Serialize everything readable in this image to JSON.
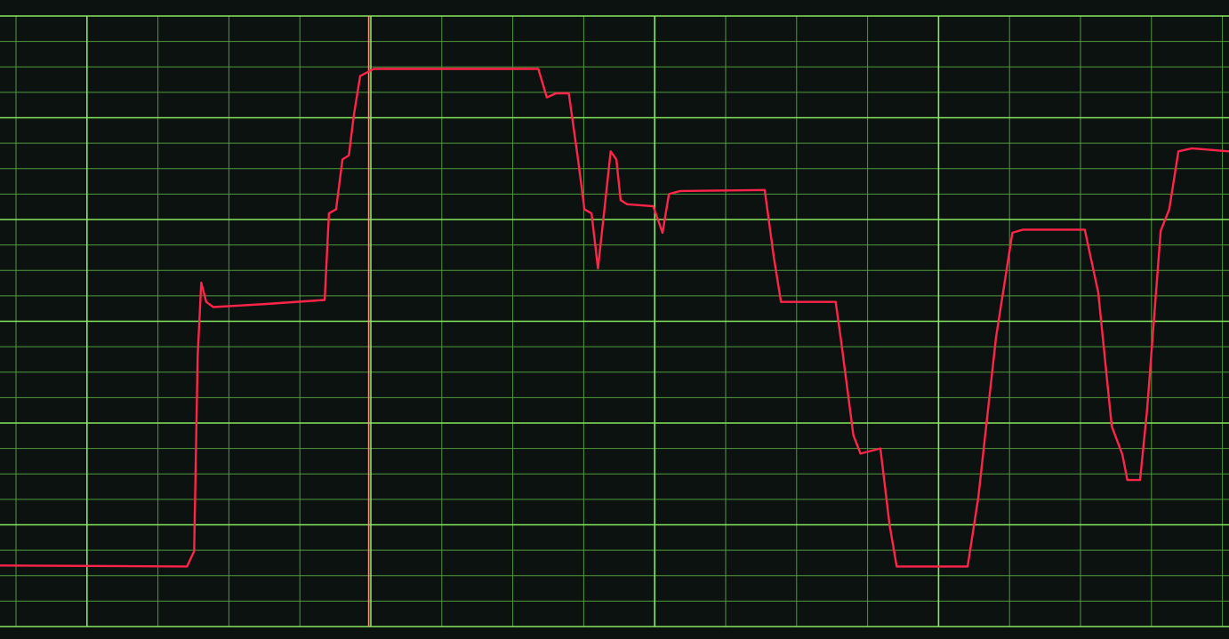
{
  "chart_data": {
    "type": "line",
    "title": "",
    "xlabel": "",
    "ylabel": "",
    "xlim": [
      -0.23,
      17.09
    ],
    "ylim": [
      0,
      6
    ],
    "grid": true,
    "grid_major_x": [
      1,
      5,
      9,
      13
    ],
    "grid_major_y": [
      0,
      1,
      2,
      3,
      4,
      5,
      6
    ],
    "grid_minor_x_step": 1,
    "grid_minor_y_step": 0.25,
    "cursor_x": 4.97,
    "colors": {
      "background": "#0c1210",
      "grid_major": "#86e65e",
      "grid_minor": "#4f9a3c",
      "trace": "#ff2449",
      "cursor": "#ff8a8a"
    },
    "series": [
      {
        "x": [
          -0.23,
          2.41,
          2.51,
          2.56,
          2.61,
          2.68,
          2.78,
          3.53,
          4.35,
          4.41,
          4.51,
          4.6,
          4.69,
          4.76,
          4.85,
          5.04,
          6.04,
          7.36,
          7.48,
          7.61,
          7.79,
          7.92,
          8.01,
          8.11,
          8.2,
          8.3,
          8.38,
          8.46,
          8.52,
          8.61,
          8.98,
          9.11,
          9.2,
          9.36,
          10.55,
          10.68,
          10.78,
          11.55,
          11.62,
          11.8,
          11.9,
          12.18,
          12.31,
          12.41,
          13.41,
          13.56,
          13.81,
          14.04,
          14.19,
          15.06,
          15.25,
          15.44,
          15.59,
          15.66,
          15.84,
          15.94,
          16.13,
          16.25,
          16.38,
          16.57,
          17.09
        ],
        "y": [
          0.6,
          0.59,
          0.74,
          2.66,
          3.38,
          3.19,
          3.14,
          3.17,
          3.21,
          4.06,
          4.1,
          4.59,
          4.63,
          5.02,
          5.41,
          5.48,
          5.48,
          5.48,
          5.2,
          5.24,
          5.24,
          4.59,
          4.1,
          4.06,
          3.52,
          4.15,
          4.67,
          4.59,
          4.19,
          4.15,
          4.13,
          3.87,
          4.25,
          4.28,
          4.29,
          3.62,
          3.19,
          3.19,
          2.84,
          1.88,
          1.7,
          1.75,
          1.0,
          0.59,
          0.59,
          1.27,
          2.84,
          3.87,
          3.9,
          3.9,
          3.28,
          1.97,
          1.69,
          1.44,
          1.44,
          2.14,
          3.89,
          4.1,
          4.67,
          4.7,
          4.67
        ]
      }
    ]
  }
}
